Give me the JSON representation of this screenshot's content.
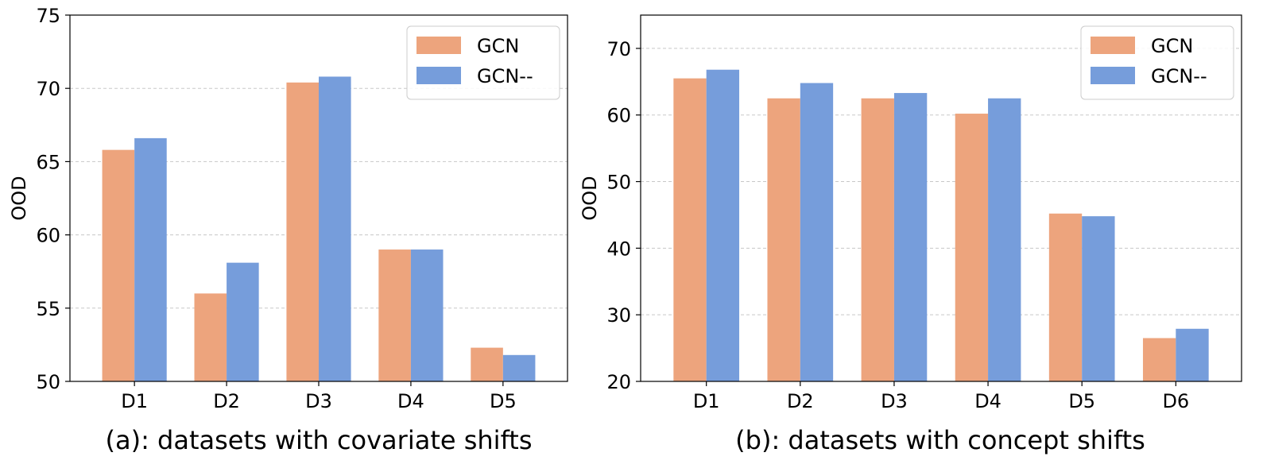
{
  "colors": {
    "GCN": "#eda47d",
    "GCN--": "#769ddb",
    "grid": "#c8c8c8"
  },
  "chart_data": [
    {
      "type": "bar",
      "caption": "(a): datasets with covariate shifts",
      "ylabel": "OOD",
      "xlabel": "",
      "ylim": [
        50,
        75
      ],
      "yticks": [
        50,
        55,
        60,
        65,
        70,
        75
      ],
      "grid": true,
      "legend": "top-right",
      "categories": [
        "D1",
        "D2",
        "D3",
        "D4",
        "D5"
      ],
      "series": [
        {
          "name": "GCN",
          "values": [
            65.8,
            56.0,
            70.4,
            59.0,
            52.3
          ]
        },
        {
          "name": "GCN--",
          "values": [
            66.6,
            58.1,
            70.8,
            59.0,
            51.8
          ]
        }
      ]
    },
    {
      "type": "bar",
      "caption": "(b): datasets with concept shifts",
      "ylabel": "OOD",
      "xlabel": "",
      "ylim": [
        20,
        75
      ],
      "yticks": [
        20,
        30,
        40,
        50,
        60,
        70
      ],
      "grid": true,
      "legend": "top-right",
      "categories": [
        "D1",
        "D2",
        "D3",
        "D4",
        "D5",
        "D6"
      ],
      "series": [
        {
          "name": "GCN",
          "values": [
            65.5,
            62.5,
            62.5,
            60.2,
            45.2,
            26.5
          ]
        },
        {
          "name": "GCN--",
          "values": [
            66.8,
            64.8,
            63.3,
            62.5,
            44.8,
            27.9
          ]
        }
      ]
    }
  ]
}
